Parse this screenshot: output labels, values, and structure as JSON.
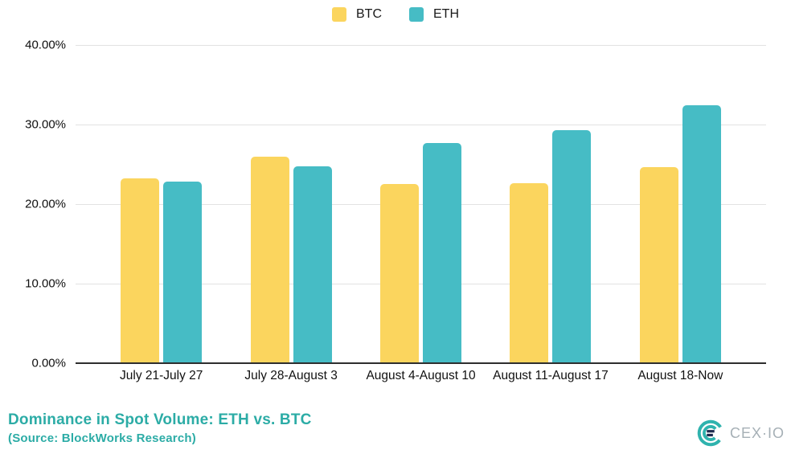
{
  "legend": {
    "items": [
      {
        "label": "BTC",
        "color": "#FBD55E"
      },
      {
        "label": "ETH",
        "color": "#46BCC5"
      }
    ]
  },
  "chart_data": {
    "type": "bar",
    "title": "Dominance in Spot Volume: ETH vs. BTC",
    "categories": [
      "July 21-July 27",
      "July 28-August 3",
      "August 4-August 10",
      "August 11-August 17",
      "August 18-Now"
    ],
    "series": [
      {
        "name": "BTC",
        "color": "#FBD55E",
        "values": [
          23.2,
          26.0,
          22.5,
          22.6,
          24.6
        ]
      },
      {
        "name": "ETH",
        "color": "#46BCC5",
        "values": [
          22.8,
          24.7,
          27.7,
          29.3,
          32.4
        ]
      }
    ],
    "ylabel": "",
    "xlabel": "",
    "ylim": [
      0,
      40
    ],
    "yticks": [
      {
        "label": "40.00%",
        "value": 40
      },
      {
        "label": "30.00%",
        "value": 30
      },
      {
        "label": "20.00%",
        "value": 20
      },
      {
        "label": "10.00%",
        "value": 10
      },
      {
        "label": "0.00%",
        "value": 0
      }
    ],
    "grid": true,
    "legend_position": "top-center"
  },
  "footer": {
    "title": "Dominance in Spot Volume: ETH vs. BTC",
    "source": "(Source: BlockWorks Research)",
    "title_color": "#2CACA6",
    "source_color": "#2CACA6"
  },
  "logo": {
    "text": "CEX·IO",
    "text_color": "#A6B0B6",
    "mark_color": "#2FB3AE",
    "mark_dark_color": "#1E2B4F"
  },
  "colors": {
    "gridline": "#E2E2E2",
    "axis_line": "#2E2E2E",
    "tick_text": "#0F0F0F"
  }
}
